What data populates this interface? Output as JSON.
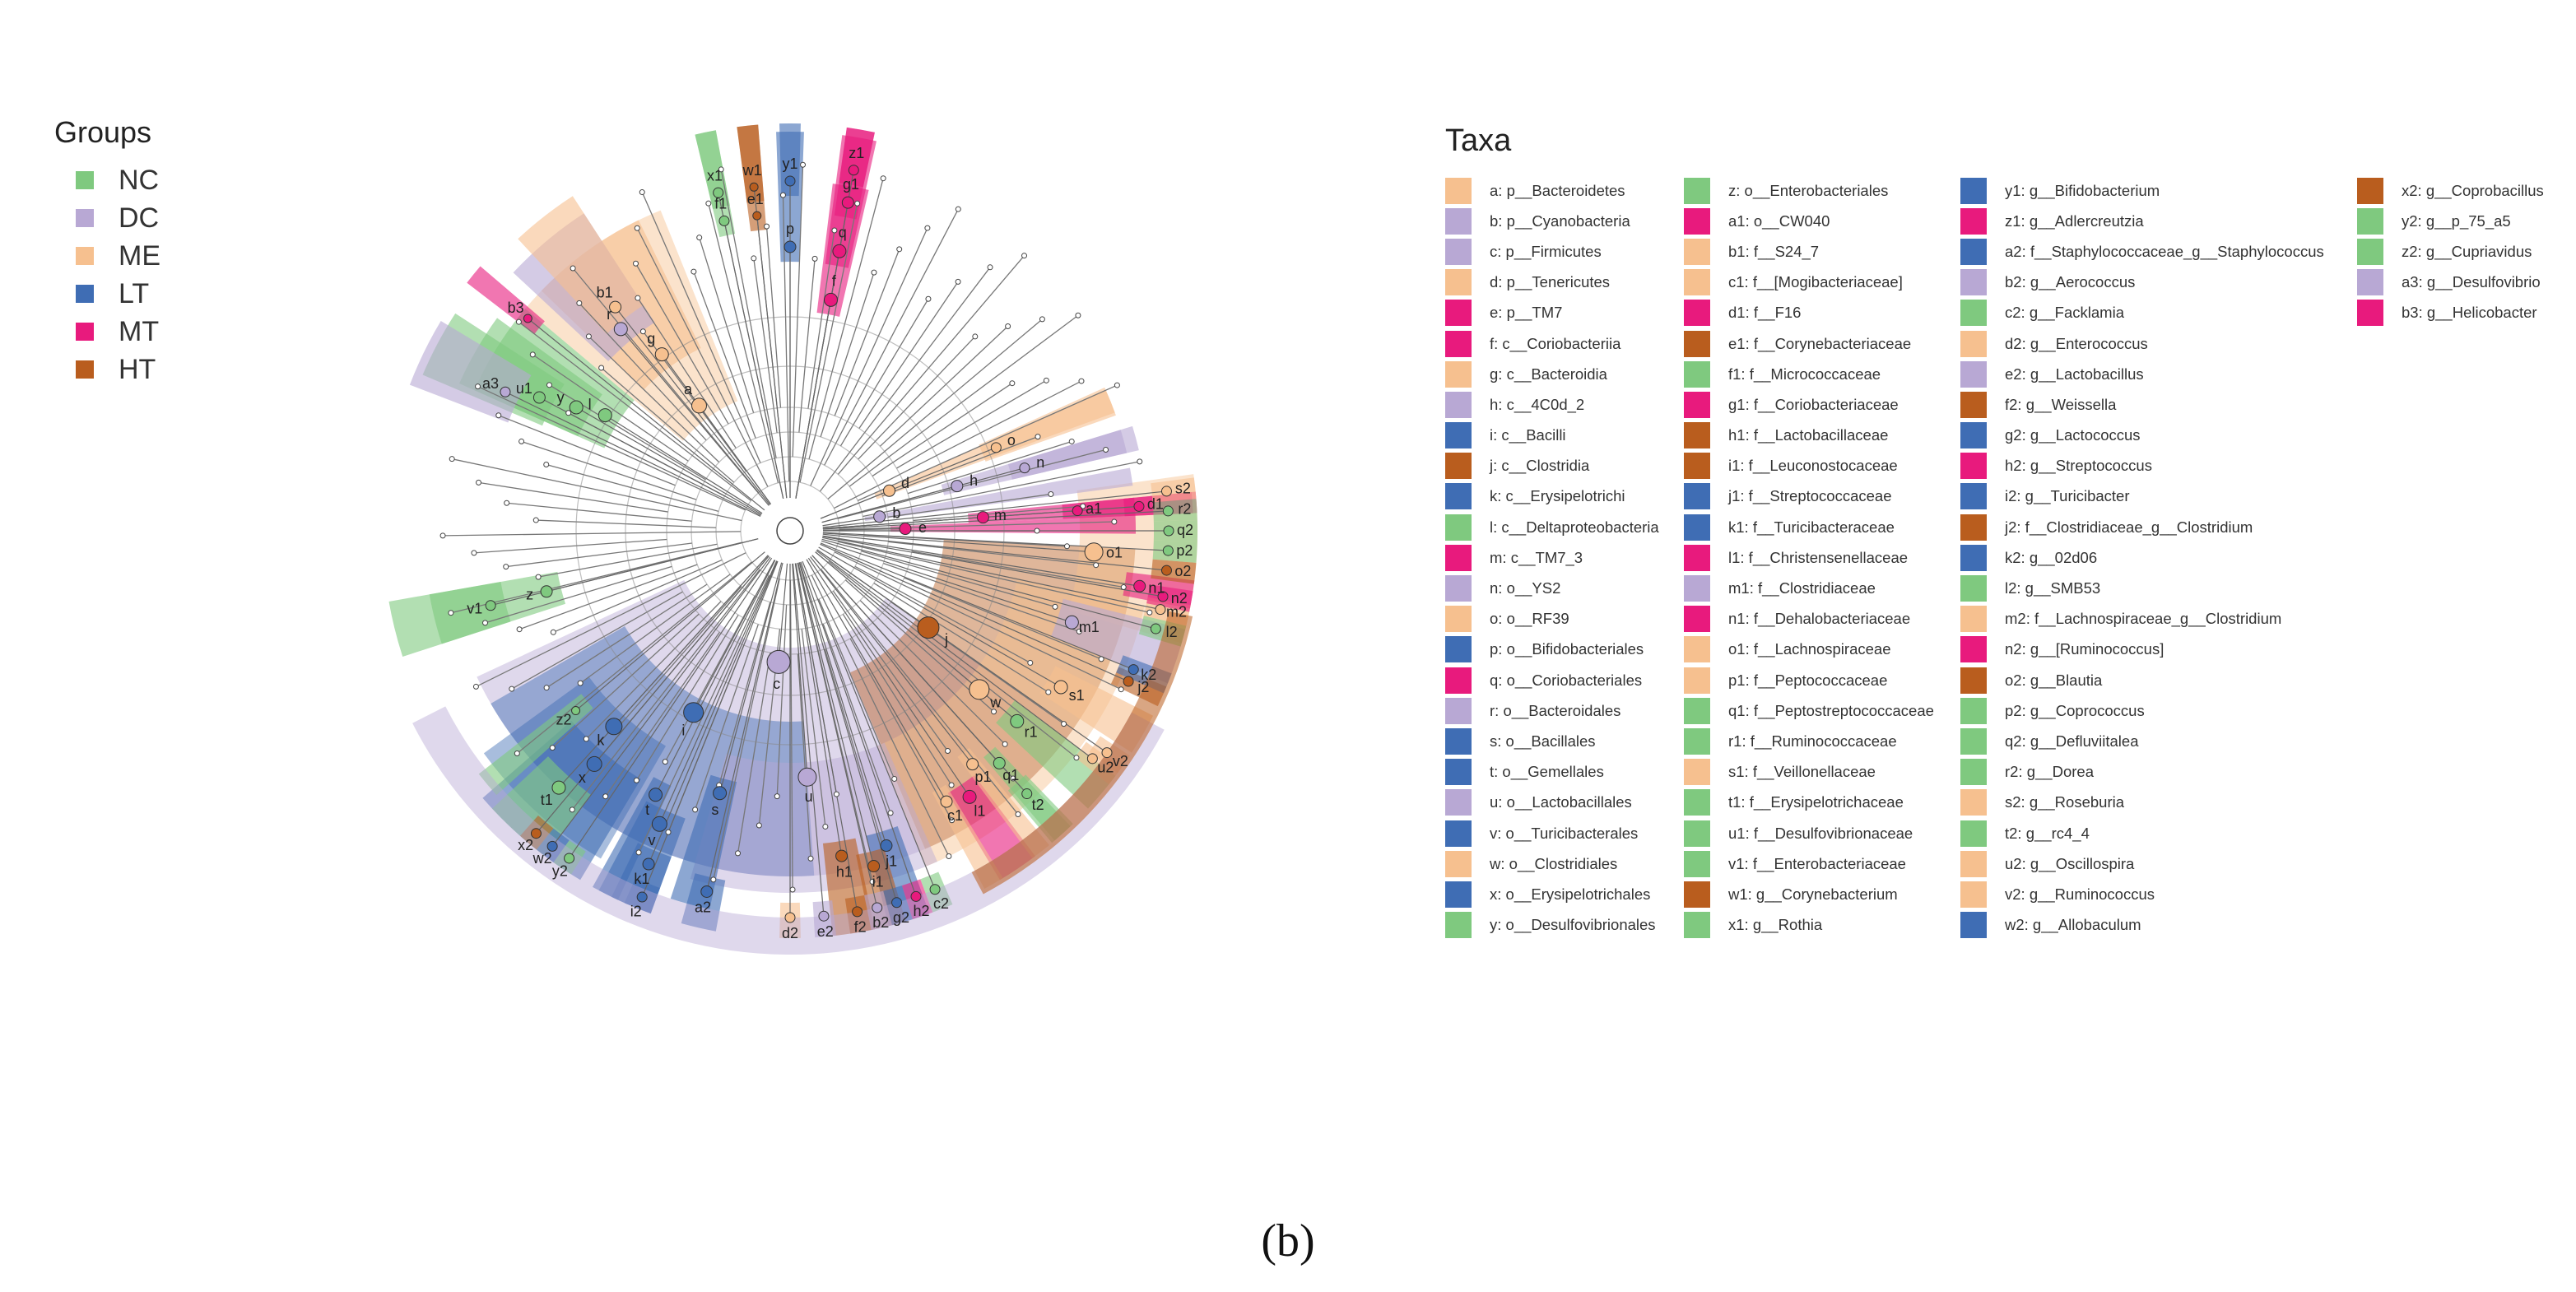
{
  "colors": {
    "NC": "#7fc97f",
    "DC": "#b8a8d4",
    "ME": "#f6c08f",
    "LT": "#3f6db4",
    "MT": "#e81a7d",
    "HT": "#b95d1e"
  },
  "groups_legend": {
    "title": "Groups",
    "items": [
      {
        "label": "NC",
        "color": "#7fc97f"
      },
      {
        "label": "DC",
        "color": "#b8a8d4"
      },
      {
        "label": "ME",
        "color": "#f6c08f"
      },
      {
        "label": "LT",
        "color": "#3f6db4"
      },
      {
        "label": "MT",
        "color": "#e81a7d"
      },
      {
        "label": "HT",
        "color": "#b95d1e"
      }
    ]
  },
  "taxa_legend": {
    "title": "Taxa",
    "columns": [
      [
        {
          "text": "a: p__Bacteroidetes",
          "group": "ME"
        },
        {
          "text": "b: p__Cyanobacteria",
          "group": "DC"
        },
        {
          "text": "c: p__Firmicutes",
          "group": "DC"
        },
        {
          "text": "d: p__Tenericutes",
          "group": "ME"
        },
        {
          "text": "e: p__TM7",
          "group": "MT"
        },
        {
          "text": "f: c__Coriobacteriia",
          "group": "MT"
        },
        {
          "text": "g: c__Bacteroidia",
          "group": "ME"
        },
        {
          "text": "h: c__4C0d_2",
          "group": "DC"
        },
        {
          "text": "i: c__Bacilli",
          "group": "LT"
        },
        {
          "text": "j: c__Clostridia",
          "group": "HT"
        },
        {
          "text": "k: c__Erysipelotrichi",
          "group": "LT"
        },
        {
          "text": "l: c__Deltaproteobacteria",
          "group": "NC"
        },
        {
          "text": "m: c__TM7_3",
          "group": "MT"
        },
        {
          "text": "n: o__YS2",
          "group": "DC"
        },
        {
          "text": "o: o__RF39",
          "group": "ME"
        },
        {
          "text": "p: o__Bifidobacteriales",
          "group": "LT"
        },
        {
          "text": "q: o__Coriobacteriales",
          "group": "MT"
        },
        {
          "text": "r: o__Bacteroidales",
          "group": "DC"
        },
        {
          "text": "s: o__Bacillales",
          "group": "LT"
        },
        {
          "text": "t: o__Gemellales",
          "group": "LT"
        },
        {
          "text": "u: o__Lactobacillales",
          "group": "DC"
        },
        {
          "text": "v: o__Turicibacterales",
          "group": "LT"
        },
        {
          "text": "w: o__Clostridiales",
          "group": "ME"
        },
        {
          "text": "x: o__Erysipelotrichales",
          "group": "LT"
        },
        {
          "text": "y: o__Desulfovibrionales",
          "group": "NC"
        }
      ],
      [
        {
          "text": "z: o__Enterobacteriales",
          "group": "NC"
        },
        {
          "text": "a1: o__CW040",
          "group": "MT"
        },
        {
          "text": "b1: f__S24_7",
          "group": "ME"
        },
        {
          "text": "c1: f__[Mogibacteriaceae]",
          "group": "ME"
        },
        {
          "text": "d1: f__F16",
          "group": "MT"
        },
        {
          "text": "e1: f__Corynebacteriaceae",
          "group": "HT"
        },
        {
          "text": "f1: f__Micrococcaceae",
          "group": "NC"
        },
        {
          "text": "g1: f__Coriobacteriaceae",
          "group": "MT"
        },
        {
          "text": "h1: f__Lactobacillaceae",
          "group": "HT"
        },
        {
          "text": "i1: f__Leuconostocaceae",
          "group": "HT"
        },
        {
          "text": "j1: f__Streptococcaceae",
          "group": "LT"
        },
        {
          "text": "k1: f__Turicibacteraceae",
          "group": "LT"
        },
        {
          "text": "l1: f__Christensenellaceae",
          "group": "MT"
        },
        {
          "text": "m1: f__Clostridiaceae",
          "group": "DC"
        },
        {
          "text": "n1: f__Dehalobacteriaceae",
          "group": "MT"
        },
        {
          "text": "o1: f__Lachnospiraceae",
          "group": "ME"
        },
        {
          "text": "p1: f__Peptococcaceae",
          "group": "ME"
        },
        {
          "text": "q1: f__Peptostreptococcaceae",
          "group": "NC"
        },
        {
          "text": "r1: f__Ruminococcaceae",
          "group": "NC"
        },
        {
          "text": "s1: f__Veillonellaceae",
          "group": "ME"
        },
        {
          "text": "t1: f__Erysipelotrichaceae",
          "group": "NC"
        },
        {
          "text": "u1: f__Desulfovibrionaceae",
          "group": "NC"
        },
        {
          "text": "v1: f__Enterobacteriaceae",
          "group": "NC"
        },
        {
          "text": "w1: g__Corynebacterium",
          "group": "HT"
        },
        {
          "text": "x1: g__Rothia",
          "group": "NC"
        }
      ],
      [
        {
          "text": "y1: g__Bifidobacterium",
          "group": "LT"
        },
        {
          "text": "z1: g__Adlercreutzia",
          "group": "MT"
        },
        {
          "text": "a2: f__Staphylococcaceae_g__Staphylococcus",
          "group": "LT"
        },
        {
          "text": "b2: g__Aerococcus",
          "group": "DC"
        },
        {
          "text": "c2: g__Facklamia",
          "group": "NC"
        },
        {
          "text": "d2: g__Enterococcus",
          "group": "ME"
        },
        {
          "text": "e2: g__Lactobacillus",
          "group": "DC"
        },
        {
          "text": "f2: g__Weissella",
          "group": "HT"
        },
        {
          "text": "g2: g__Lactococcus",
          "group": "LT"
        },
        {
          "text": "h2: g__Streptococcus",
          "group": "MT"
        },
        {
          "text": "i2: g__Turicibacter",
          "group": "LT"
        },
        {
          "text": "j2: f__Clostridiaceae_g__Clostridium",
          "group": "HT"
        },
        {
          "text": "k2: g__02d06",
          "group": "LT"
        },
        {
          "text": "l2: g__SMB53",
          "group": "NC"
        },
        {
          "text": "m2: f__Lachnospiraceae_g__Clostridium",
          "group": "ME"
        },
        {
          "text": "n2: g__[Ruminococcus]",
          "group": "MT"
        },
        {
          "text": "o2: g__Blautia",
          "group": "HT"
        },
        {
          "text": "p2: g__Coprococcus",
          "group": "NC"
        },
        {
          "text": "q2: g__Defluviitalea",
          "group": "NC"
        },
        {
          "text": "r2: g__Dorea",
          "group": "NC"
        },
        {
          "text": "s2: g__Roseburia",
          "group": "ME"
        },
        {
          "text": "t2: g__rc4_4",
          "group": "NC"
        },
        {
          "text": "u2: g__Oscillospira",
          "group": "ME"
        },
        {
          "text": "v2: g__Ruminococcus",
          "group": "ME"
        },
        {
          "text": "w2: g__Allobaculum",
          "group": "LT"
        }
      ],
      [
        {
          "text": "x2: g__Coprobacillus",
          "group": "HT"
        },
        {
          "text": "y2: g__p_75_a5",
          "group": "NC"
        },
        {
          "text": "z2: g__Cupriavidus",
          "group": "NC"
        },
        {
          "text": "a3: g__Desulfovibrio",
          "group": "DC"
        },
        {
          "text": "b3: g__Helicobacter",
          "group": "MT"
        }
      ]
    ]
  },
  "cladogram": {
    "clades": [
      {
        "label": "a",
        "group": "ME",
        "dist": 188,
        "deg": 234,
        "span": 28,
        "r": 9
      },
      {
        "label": "g",
        "group": "ME",
        "dist": 265,
        "deg": 234,
        "span": 20,
        "r": 8
      },
      {
        "label": "b1",
        "group": "ME",
        "dist": 345,
        "deg": 232,
        "span": 10,
        "r": 7
      },
      {
        "label": "r",
        "group": "DC",
        "dist": 320,
        "deg": 230,
        "span": 14,
        "r": 8
      },
      {
        "label": "l",
        "group": "NC",
        "dist": 265,
        "deg": 212,
        "span": 16,
        "r": 8
      },
      {
        "label": "y",
        "group": "NC",
        "dist": 300,
        "deg": 210,
        "span": 12,
        "r": 8
      },
      {
        "label": "u1",
        "group": "NC",
        "dist": 345,
        "deg": 208,
        "span": 10,
        "r": 7
      },
      {
        "label": "a3",
        "group": "DC",
        "dist": 385,
        "deg": 206,
        "span": 10,
        "r": 6
      },
      {
        "label": "b3",
        "group": "MT",
        "dist": 410,
        "deg": 219,
        "span": 3,
        "r": 5
      },
      {
        "label": "z",
        "group": "NC",
        "dist": 305,
        "deg": 166,
        "span": 8,
        "r": 7
      },
      {
        "label": "v1",
        "group": "NC",
        "dist": 375,
        "deg": 166,
        "span": 8,
        "r": 6
      },
      {
        "label": "z2",
        "group": "NC",
        "dist": 340,
        "deg": 140,
        "span": 4,
        "r": 5
      },
      {
        "label": "x1",
        "group": "NC",
        "dist": 420,
        "deg": 258,
        "span": 3,
        "r": 6
      },
      {
        "label": "f1",
        "group": "NC",
        "dist": 385,
        "deg": 258,
        "span": 3,
        "r": 6
      },
      {
        "label": "w1",
        "group": "HT",
        "dist": 420,
        "deg": 264,
        "span": 3,
        "r": 5
      },
      {
        "label": "e1",
        "group": "HT",
        "dist": 385,
        "deg": 264,
        "span": 3,
        "r": 5
      },
      {
        "label": "y1",
        "group": "LT",
        "dist": 425,
        "deg": 270,
        "span": 3,
        "r": 6
      },
      {
        "label": "p",
        "group": "LT",
        "dist": 345,
        "deg": 270,
        "span": 4,
        "r": 7
      },
      {
        "label": "z1",
        "group": "MT",
        "dist": 445,
        "deg": 280,
        "span": 4,
        "r": 6
      },
      {
        "label": "g1",
        "group": "MT",
        "dist": 405,
        "deg": 280,
        "span": 4,
        "r": 7
      },
      {
        "label": "q",
        "group": "MT",
        "dist": 345,
        "deg": 280,
        "span": 5,
        "r": 8
      },
      {
        "label": "f",
        "group": "MT",
        "dist": 285,
        "deg": 280,
        "span": 6,
        "r": 8
      },
      {
        "label": "o",
        "group": "ME",
        "dist": 270,
        "deg": 338,
        "span": 5,
        "r": 6
      },
      {
        "label": "d",
        "group": "ME",
        "dist": 130,
        "deg": 338,
        "span": 4,
        "r": 7
      },
      {
        "label": "n",
        "group": "DC",
        "dist": 295,
        "deg": 345,
        "span": 4,
        "r": 6
      },
      {
        "label": "h",
        "group": "DC",
        "dist": 210,
        "deg": 345,
        "span": 4,
        "r": 7
      },
      {
        "label": "b",
        "group": "DC",
        "dist": 110,
        "deg": 351,
        "span": 3,
        "r": 7
      },
      {
        "label": "d1",
        "group": "MT",
        "dist": 425,
        "deg": 356,
        "span": 3,
        "r": 6
      },
      {
        "label": "a1",
        "group": "MT",
        "dist": 350,
        "deg": 356,
        "span": 3,
        "r": 6
      },
      {
        "label": "m",
        "group": "MT",
        "dist": 235,
        "deg": 356,
        "span": 3,
        "r": 7
      },
      {
        "label": "e",
        "group": "MT",
        "dist": 140,
        "deg": 359,
        "span": 3,
        "r": 7
      },
      {
        "label": "c",
        "group": "DC",
        "dist": 160,
        "deg": 95,
        "span": 120,
        "r": 14
      },
      {
        "label": "i",
        "group": "LT",
        "dist": 250,
        "deg": 118,
        "span": 64,
        "r": 12
      },
      {
        "label": "k",
        "group": "LT",
        "dist": 320,
        "deg": 132,
        "span": 24,
        "r": 10
      },
      {
        "label": "x",
        "group": "LT",
        "dist": 370,
        "deg": 130,
        "span": 18,
        "r": 9
      },
      {
        "label": "t1",
        "group": "NC",
        "dist": 420,
        "deg": 132,
        "span": 10,
        "r": 8
      },
      {
        "label": "w2",
        "group": "LT",
        "dist": 480,
        "deg": 127,
        "span": 3,
        "r": 6
      },
      {
        "label": "x2",
        "group": "HT",
        "dist": 480,
        "deg": 130,
        "span": 3,
        "r": 6
      },
      {
        "label": "y2",
        "group": "NC",
        "dist": 480,
        "deg": 124,
        "span": 3,
        "r": 6
      },
      {
        "label": "t",
        "group": "LT",
        "dist": 360,
        "deg": 117,
        "span": 4,
        "r": 8
      },
      {
        "label": "v",
        "group": "LT",
        "dist": 390,
        "deg": 114,
        "span": 8,
        "r": 9
      },
      {
        "label": "k1",
        "group": "LT",
        "dist": 440,
        "deg": 113,
        "span": 6,
        "r": 7
      },
      {
        "label": "i2",
        "group": "LT",
        "dist": 480,
        "deg": 112,
        "span": 4,
        "r": 6
      },
      {
        "label": "s",
        "group": "LT",
        "dist": 330,
        "deg": 105,
        "span": 6,
        "r": 8
      },
      {
        "label": "a2",
        "group": "LT",
        "dist": 450,
        "deg": 103,
        "span": 5,
        "r": 7
      },
      {
        "label": "u",
        "group": "DC",
        "dist": 300,
        "deg": 86,
        "span": 40,
        "r": 11
      },
      {
        "label": "d2",
        "group": "ME",
        "dist": 470,
        "deg": 90,
        "span": 3,
        "r": 6
      },
      {
        "label": "e2",
        "group": "DC",
        "dist": 470,
        "deg": 85,
        "span": 3,
        "r": 6
      },
      {
        "label": "h1",
        "group": "HT",
        "dist": 400,
        "deg": 81,
        "span": 6,
        "r": 7
      },
      {
        "label": "f2",
        "group": "HT",
        "dist": 470,
        "deg": 80,
        "span": 3,
        "r": 6
      },
      {
        "label": "i1",
        "group": "HT",
        "dist": 420,
        "deg": 76,
        "span": 5,
        "r": 7
      },
      {
        "label": "j1",
        "group": "LT",
        "dist": 400,
        "deg": 73,
        "span": 6,
        "r": 7
      },
      {
        "label": "g2",
        "group": "LT",
        "dist": 470,
        "deg": 74,
        "span": 3,
        "r": 6
      },
      {
        "label": "h2",
        "group": "MT",
        "dist": 470,
        "deg": 71,
        "span": 3,
        "r": 6
      },
      {
        "label": "b2",
        "group": "DC",
        "dist": 470,
        "deg": 77,
        "span": 3,
        "r": 6
      },
      {
        "label": "c2",
        "group": "NC",
        "dist": 470,
        "deg": 68,
        "span": 3,
        "r": 6
      },
      {
        "label": "j",
        "group": "HT",
        "dist": 205,
        "deg": 35,
        "span": 64,
        "r": 13
      },
      {
        "label": "w",
        "group": "ME",
        "dist": 300,
        "deg": 40,
        "span": 56,
        "r": 12
      },
      {
        "label": "l1",
        "group": "MT",
        "dist": 390,
        "deg": 56,
        "span": 6,
        "r": 8
      },
      {
        "label": "c1",
        "group": "ME",
        "dist": 380,
        "deg": 60,
        "span": 3,
        "r": 7
      },
      {
        "label": "p1",
        "group": "ME",
        "dist": 360,
        "deg": 52,
        "span": 3,
        "r": 7
      },
      {
        "label": "q1",
        "group": "NC",
        "dist": 380,
        "deg": 48,
        "span": 3,
        "r": 7
      },
      {
        "label": "r1",
        "group": "NC",
        "dist": 360,
        "deg": 40,
        "span": 6,
        "r": 8
      },
      {
        "label": "t2",
        "group": "NC",
        "dist": 430,
        "deg": 48,
        "span": 4,
        "r": 6
      },
      {
        "label": "u2",
        "group": "ME",
        "dist": 460,
        "deg": 37,
        "span": 3,
        "r": 6
      },
      {
        "label": "v2",
        "group": "ME",
        "dist": 470,
        "deg": 35,
        "span": 3,
        "r": 6
      },
      {
        "label": "s1",
        "group": "ME",
        "dist": 380,
        "deg": 30,
        "span": 6,
        "r": 8
      },
      {
        "label": "m1",
        "group": "DC",
        "dist": 360,
        "deg": 18,
        "span": 8,
        "r": 8
      },
      {
        "label": "j2",
        "group": "HT",
        "dist": 450,
        "deg": 24,
        "span": 3,
        "r": 6
      },
      {
        "label": "k2",
        "group": "LT",
        "dist": 450,
        "deg": 22,
        "span": 3,
        "r": 6
      },
      {
        "label": "l2",
        "group": "NC",
        "dist": 460,
        "deg": 15,
        "span": 3,
        "r": 6
      },
      {
        "label": "m2",
        "group": "ME",
        "dist": 460,
        "deg": 12,
        "span": 3,
        "r": 6
      },
      {
        "label": "n1",
        "group": "MT",
        "dist": 430,
        "deg": 9,
        "span": 4,
        "r": 7
      },
      {
        "label": "n2",
        "group": "MT",
        "dist": 460,
        "deg": 10,
        "span": 3,
        "r": 6
      },
      {
        "label": "o1",
        "group": "ME",
        "dist": 370,
        "deg": 4,
        "span": 24,
        "r": 11
      },
      {
        "label": "o2",
        "group": "HT",
        "dist": 460,
        "deg": 6,
        "span": 3,
        "r": 6
      },
      {
        "label": "p2",
        "group": "NC",
        "dist": 460,
        "deg": 3,
        "span": 3,
        "r": 6
      },
      {
        "label": "q2",
        "group": "NC",
        "dist": 460,
        "deg": 0,
        "span": 3,
        "r": 6
      },
      {
        "label": "r2",
        "group": "NC",
        "dist": 460,
        "deg": -3,
        "span": 3,
        "r": 6
      },
      {
        "label": "s2",
        "group": "ME",
        "dist": 460,
        "deg": -6,
        "span": 3,
        "r": 6
      }
    ]
  },
  "caption": "(b)"
}
